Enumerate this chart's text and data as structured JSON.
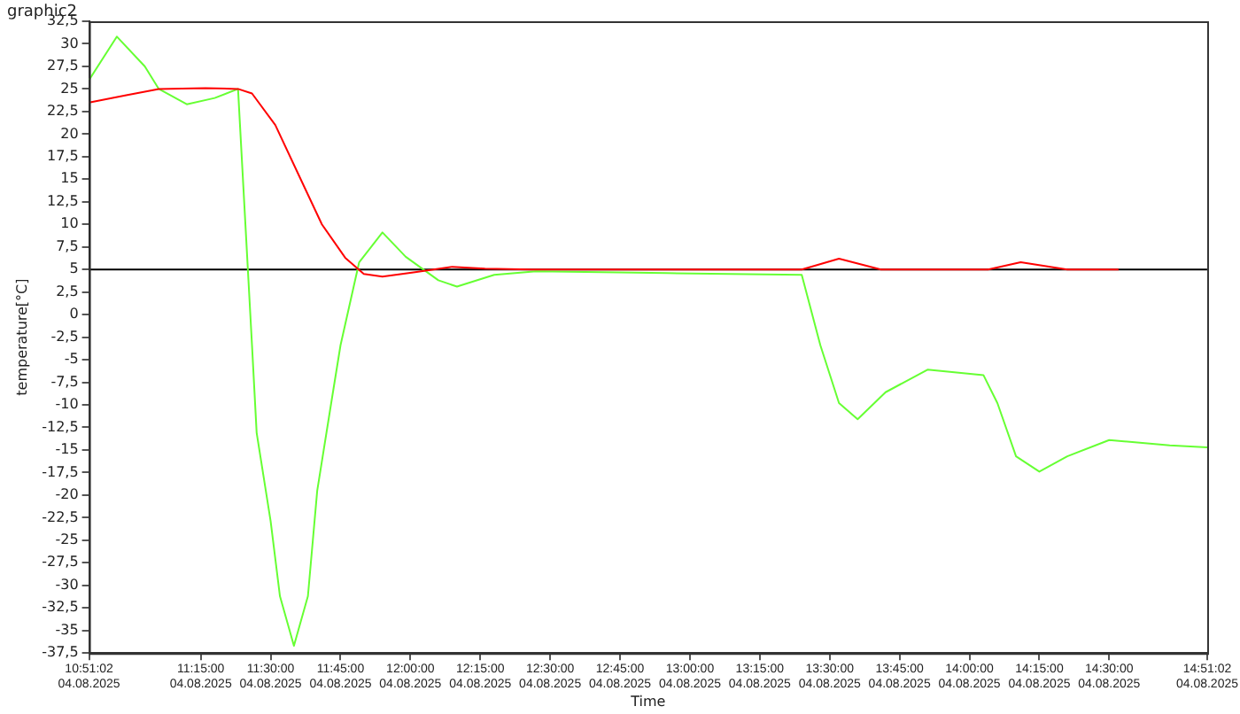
{
  "chart_data": {
    "type": "line",
    "title": "graphic2",
    "xlabel": "Time",
    "ylabel": "temperature[°C]",
    "xlim": [
      "2025-08-04T10:51:02",
      "2025-08-04T14:51:02"
    ],
    "xticks": [
      {
        "value": "2025-08-04T10:51:02",
        "label": "10:51:02\n04.08.2025"
      },
      {
        "value": "2025-08-04T11:15",
        "label": "11:15:00\n04.08.2025"
      },
      {
        "value": "2025-08-04T11:30",
        "label": "11:30:00\n04.08.2025"
      },
      {
        "value": "2025-08-04T11:45",
        "label": "11:45:00\n04.08.2025"
      },
      {
        "value": "2025-08-04T12:00",
        "label": "12:00:00\n04.08.2025"
      },
      {
        "value": "2025-08-04T12:15",
        "label": "12:15:00\n04.08.2025"
      },
      {
        "value": "2025-08-04T12:30",
        "label": "12:30:00\n04.08.2025"
      },
      {
        "value": "2025-08-04T12:45",
        "label": "12:45:00\n04.08.2025"
      },
      {
        "value": "2025-08-04T13:00",
        "label": "13:00:00\n04.08.2025"
      },
      {
        "value": "2025-08-04T13:15",
        "label": "13:15:00\n04.08.2025"
      },
      {
        "value": "2025-08-04T13:30",
        "label": "13:30:00\n04.08.2025"
      },
      {
        "value": "2025-08-04T13:45",
        "label": "13:45:00\n04.08.2025"
      },
      {
        "value": "2025-08-04T14:00",
        "label": "14:00:00\n04.08.2025"
      },
      {
        "value": "2025-08-04T14:15",
        "label": "14:15:00\n04.08.2025"
      },
      {
        "value": "2025-08-04T14:30",
        "label": "14:30:00\n04.08.2025"
      },
      {
        "value": "2025-08-04T14:51:02",
        "label": "14:51:02\n04.08.2025"
      }
    ],
    "ylim": [
      -37.5,
      32.5
    ],
    "yticks": [
      {
        "value": -37.5,
        "label": "-37,5"
      },
      -35,
      {
        "value": -32.5,
        "label": "-32,5"
      },
      -30,
      {
        "value": -27.5,
        "label": "-27,5"
      },
      -25,
      {
        "value": -22.5,
        "label": "-22,5"
      },
      -20,
      {
        "value": -17.5,
        "label": "-17,5"
      },
      -15,
      {
        "value": -12.5,
        "label": "-12,5"
      },
      -10,
      {
        "value": -7.5,
        "label": "-7,5"
      },
      -5,
      {
        "value": -2.5,
        "label": "-2,5"
      },
      0,
      {
        "value": 2.5,
        "label": "2,5"
      },
      5,
      {
        "value": 7.5,
        "label": "7,5"
      },
      10,
      {
        "value": 12.5,
        "label": "12,5"
      },
      15,
      {
        "value": 17.5,
        "label": "17,5"
      },
      20,
      {
        "value": 22.5,
        "label": "22,5"
      },
      25,
      {
        "value": 27.5,
        "label": "27,5"
      },
      30,
      {
        "value": 32.5,
        "label": "32,5"
      }
    ],
    "grid": false,
    "legend": false,
    "marker": "none",
    "line_style": "solid",
    "series": [
      {
        "color": "#ff0000",
        "x": [
          "2025-08-04T10:51:02",
          "2025-08-04T10:59",
          "2025-08-04T11:06",
          "2025-08-04T11:16",
          "2025-08-04T11:23",
          "2025-08-04T11:26",
          "2025-08-04T11:31",
          "2025-08-04T11:36",
          "2025-08-04T11:41",
          "2025-08-04T11:46",
          "2025-08-04T11:50",
          "2025-08-04T11:54",
          "2025-08-04T12:01",
          "2025-08-04T12:09",
          "2025-08-04T12:16",
          "2025-08-04T12:26",
          "2025-08-04T13:24",
          "2025-08-04T13:32",
          "2025-08-04T13:41",
          "2025-08-04T14:04",
          "2025-08-04T14:11",
          "2025-08-04T14:21",
          "2025-08-04T14:32"
        ],
        "values": [
          23.5,
          24.3,
          25,
          25.1,
          25,
          24.5,
          21,
          15.5,
          10,
          6.3,
          4.5,
          4.2,
          4.7,
          5.3,
          5.1,
          5.0,
          5.0,
          6.2,
          5.0,
          5.0,
          5.8,
          5.0,
          5.0
        ]
      },
      {
        "color": "#66ff33",
        "x": [
          "2025-08-04T10:51:02",
          "2025-08-04T10:57",
          "2025-08-04T11:03",
          "2025-08-04T11:06",
          "2025-08-04T11:12",
          "2025-08-04T11:18",
          "2025-08-04T11:23",
          "2025-08-04T11:26",
          "2025-08-04T11:27",
          "2025-08-04T11:30",
          "2025-08-04T11:32",
          "2025-08-04T11:35",
          "2025-08-04T11:38",
          "2025-08-04T11:40",
          "2025-08-04T11:43",
          "2025-08-04T11:45",
          "2025-08-04T11:49",
          "2025-08-04T11:54",
          "2025-08-04T11:59",
          "2025-08-04T12:06",
          "2025-08-04T12:10",
          "2025-08-04T12:18",
          "2025-08-04T12:27",
          "2025-08-04T12:55",
          "2025-08-04T13:24",
          "2025-08-04T13:28",
          "2025-08-04T13:32",
          "2025-08-04T13:36",
          "2025-08-04T13:42",
          "2025-08-04T13:51",
          "2025-08-04T14:03",
          "2025-08-04T14:06",
          "2025-08-04T14:10",
          "2025-08-04T14:15",
          "2025-08-04T14:21",
          "2025-08-04T14:30",
          "2025-08-04T14:43",
          "2025-08-04T14:51:02"
        ],
        "values": [
          26,
          30.8,
          27.5,
          25,
          23.3,
          24,
          25,
          -3.4,
          -13.1,
          -22.9,
          -31.2,
          -36.7,
          -31.2,
          -19.5,
          -9.8,
          -3.4,
          5.8,
          9.1,
          6.4,
          3.8,
          3.1,
          4.4,
          4.8,
          4.6,
          4.4,
          -3.4,
          -9.8,
          -11.6,
          -8.6,
          -6.1,
          -6.7,
          -9.8,
          -15.7,
          -17.4,
          -15.7,
          -13.9,
          -14.5,
          -14.7
        ]
      },
      {
        "type": "step",
        "color": "#000000",
        "x": [
          "2025-08-04T10:51:02",
          "2025-08-04T11:23",
          "2025-08-04T14:51:02"
        ],
        "values": [
          25,
          5,
          5
        ]
      }
    ]
  }
}
